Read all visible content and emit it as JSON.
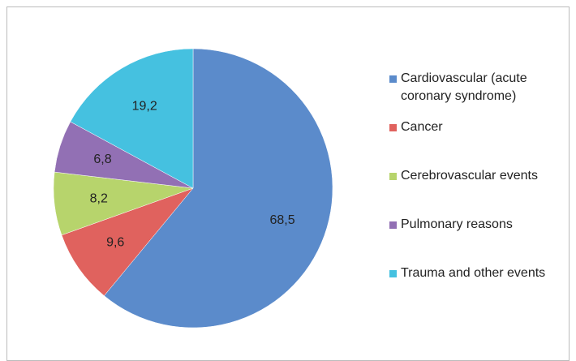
{
  "chart_data": {
    "type": "pie",
    "categories": [
      "Cardiovascular (acute coronary syndrome)",
      "Cancer",
      "Cerebrovascular events",
      "Pulmonary reasons",
      "Trauma and other events"
    ],
    "values": [
      68.5,
      9.6,
      8.2,
      6.8,
      19.2
    ],
    "value_labels": [
      "68,5",
      "9,6",
      "8,2",
      "6,8",
      "19,2"
    ],
    "colors": [
      "#5b8bcb",
      "#e0625e",
      "#b7d46c",
      "#9270b4",
      "#45c1e0"
    ],
    "legend": "right"
  }
}
